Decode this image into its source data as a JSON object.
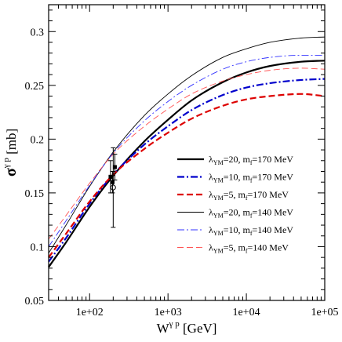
{
  "chart_data": {
    "type": "line",
    "xlabel": {
      "base": "W",
      "sup": "γ p",
      "unit": " [GeV]"
    },
    "ylabel": {
      "base": "σ",
      "sup": "γ p",
      "unit": " [mb]"
    },
    "x_scale": "log",
    "xlim": [
      30,
      100000
    ],
    "ylim": [
      0.05,
      0.325
    ],
    "x_ticks": [
      {
        "value": 100,
        "label": "1e+02"
      },
      {
        "value": 1000,
        "label": "1e+03"
      },
      {
        "value": 10000,
        "label": "1e+04"
      },
      {
        "value": 100000,
        "label": "1e+05"
      }
    ],
    "y_ticks": [
      {
        "value": 0.05,
        "label": "0.05"
      },
      {
        "value": 0.1,
        "label": "0.1"
      },
      {
        "value": 0.15,
        "label": "0.15"
      },
      {
        "value": 0.2,
        "label": "0.2"
      },
      {
        "value": 0.25,
        "label": "0.25"
      },
      {
        "value": 0.3,
        "label": "0.3"
      }
    ],
    "grid": false,
    "legend_position": "center-right",
    "series": [
      {
        "legend": {
          "main": "λ",
          "sub": "YM",
          "rest": "=20, m",
          "sub2": "f",
          "rest2": "=170 MeV"
        },
        "color": "#000000",
        "style": "solid",
        "width": 2.2,
        "x": [
          30,
          50,
          100,
          200,
          500,
          1000,
          2000,
          5000,
          10000,
          20000,
          50000,
          100000
        ],
        "y": [
          0.081,
          0.104,
          0.137,
          0.166,
          0.198,
          0.218,
          0.236,
          0.253,
          0.262,
          0.268,
          0.272,
          0.273
        ]
      },
      {
        "legend": {
          "main": "λ",
          "sub": "YM",
          "rest": "=10, m",
          "sub2": "f",
          "rest2": "=170 MeV"
        },
        "color": "#0000cc",
        "style": "dashdot",
        "width": 2.2,
        "x": [
          30,
          50,
          100,
          200,
          500,
          1000,
          2000,
          5000,
          10000,
          20000,
          50000,
          100000
        ],
        "y": [
          0.086,
          0.108,
          0.14,
          0.167,
          0.195,
          0.212,
          0.227,
          0.241,
          0.248,
          0.252,
          0.255,
          0.256
        ]
      },
      {
        "legend": {
          "main": "λ",
          "sub": "YM",
          "rest": "=5, m",
          "sub2": "f",
          "rest2": "=170 MeV"
        },
        "color": "#dd0000",
        "style": "dashed",
        "width": 2.2,
        "x": [
          30,
          50,
          100,
          200,
          500,
          1000,
          2000,
          5000,
          10000,
          20000,
          50000,
          100000
        ],
        "y": [
          0.09,
          0.112,
          0.142,
          0.167,
          0.191,
          0.206,
          0.219,
          0.231,
          0.237,
          0.24,
          0.242,
          0.24
        ]
      },
      {
        "legend": {
          "main": "λ",
          "sub": "YM",
          "rest": "=20, m",
          "sub2": "f",
          "rest2": "=140 MeV"
        },
        "color": "#000000",
        "style": "solid",
        "width": 0.9,
        "x": [
          30,
          50,
          100,
          200,
          500,
          1000,
          2000,
          5000,
          10000,
          20000,
          50000,
          100000
        ],
        "y": [
          0.094,
          0.12,
          0.156,
          0.188,
          0.222,
          0.242,
          0.259,
          0.276,
          0.284,
          0.29,
          0.294,
          0.295
        ]
      },
      {
        "legend": {
          "main": "λ",
          "sub": "YM",
          "rest": "=10, m",
          "sub2": "f",
          "rest2": "=140 MeV"
        },
        "color": "#3333ff",
        "style": "dashdot",
        "width": 0.9,
        "x": [
          30,
          50,
          100,
          200,
          500,
          1000,
          2000,
          5000,
          10000,
          20000,
          50000,
          100000
        ],
        "y": [
          0.1,
          0.124,
          0.157,
          0.187,
          0.217,
          0.235,
          0.25,
          0.265,
          0.272,
          0.276,
          0.278,
          0.278
        ]
      },
      {
        "legend": {
          "main": "λ",
          "sub": "YM",
          "rest": "=5, m",
          "sub2": "f",
          "rest2": "=140 MeV"
        },
        "color": "#ff5555",
        "style": "dashed",
        "width": 0.9,
        "x": [
          30,
          50,
          100,
          200,
          500,
          1000,
          2000,
          5000,
          10000,
          20000,
          50000,
          100000
        ],
        "y": [
          0.107,
          0.129,
          0.159,
          0.186,
          0.212,
          0.228,
          0.242,
          0.254,
          0.26,
          0.264,
          0.266,
          0.265
        ]
      }
    ],
    "data_points": [
      {
        "x": 200,
        "y": 0.155,
        "err": 0.037,
        "marker": "circle"
      },
      {
        "x": 185,
        "y": 0.165,
        "err": 0.015,
        "marker": "square"
      },
      {
        "x": 210,
        "y": 0.174,
        "err": 0.012,
        "marker": "square"
      },
      {
        "x": 196,
        "y": 0.16,
        "err": 0.01,
        "marker": "square"
      }
    ]
  }
}
